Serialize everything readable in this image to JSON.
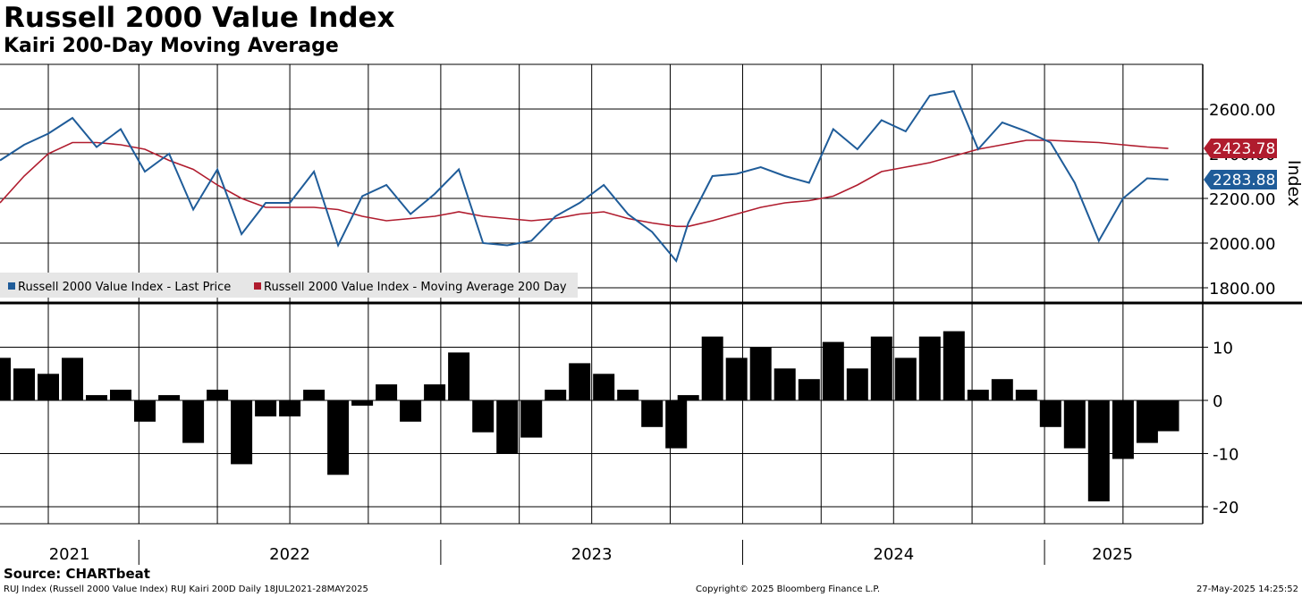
{
  "header": {
    "title": "Russell 2000 Value Index",
    "subtitle": "Kairi 200-Day Moving Average"
  },
  "footer": {
    "source": "Source: CHARTbeat",
    "ticker_info": "RUJ Index (Russell 2000 Value Index) RUJ Kairi 200D  Daily 18JUL2021-28MAY2025",
    "copyright": "Copyright© 2025 Bloomberg Finance L.P.",
    "timestamp": "27-May-2025 14:25:52"
  },
  "colors": {
    "price": "#1f5c99",
    "moving_average": "#b01c2e",
    "kairi": "#000000",
    "grid": "#000000"
  },
  "chart_data": [
    {
      "type": "line",
      "panel": "upper",
      "ylabel": "Index",
      "ylim": [
        1760,
        2800
      ],
      "yticks": [
        1800,
        2000,
        2200,
        2400,
        2600
      ],
      "ytick_labels": [
        "1800.00",
        "2000.00",
        "2200.00",
        "2400.00",
        "2600.00"
      ],
      "xlim": [
        2021.54,
        2025.45
      ],
      "x": [
        2021.54,
        2021.62,
        2021.7,
        2021.78,
        2021.86,
        2021.94,
        2022.02,
        2022.1,
        2022.18,
        2022.26,
        2022.34,
        2022.42,
        2022.5,
        2022.58,
        2022.66,
        2022.74,
        2022.82,
        2022.9,
        2022.98,
        2023.06,
        2023.14,
        2023.22,
        2023.3,
        2023.38,
        2023.46,
        2023.54,
        2023.62,
        2023.7,
        2023.78,
        2023.82,
        2023.9,
        2023.98,
        2024.06,
        2024.14,
        2024.22,
        2024.3,
        2024.38,
        2024.46,
        2024.54,
        2024.62,
        2024.7,
        2024.78,
        2024.86,
        2024.94,
        2025.02,
        2025.1,
        2025.18,
        2025.26,
        2025.34,
        2025.41
      ],
      "series": [
        {
          "name": "Russell 2000 Value Index - Last Price",
          "badge": "2283.88",
          "values": [
            2370,
            2440,
            2490,
            2560,
            2430,
            2510,
            2320,
            2400,
            2150,
            2330,
            2040,
            2180,
            2180,
            2320,
            1990,
            2210,
            2260,
            2130,
            2220,
            2330,
            2000,
            1990,
            2010,
            2120,
            2180,
            2260,
            2130,
            2050,
            1920,
            2090,
            2300,
            2310,
            2340,
            2300,
            2270,
            2510,
            2420,
            2550,
            2500,
            2660,
            2680,
            2420,
            2540,
            2500,
            2450,
            2270,
            2010,
            2200,
            2290,
            2283.88
          ]
        },
        {
          "name": "Russell 2000 Value Index - Moving Average 200 Day",
          "badge": "2423.78",
          "values": [
            2180,
            2300,
            2400,
            2450,
            2450,
            2440,
            2420,
            2370,
            2330,
            2260,
            2200,
            2160,
            2160,
            2160,
            2150,
            2120,
            2100,
            2110,
            2120,
            2140,
            2120,
            2110,
            2100,
            2110,
            2130,
            2140,
            2110,
            2090,
            2075,
            2075,
            2100,
            2130,
            2160,
            2180,
            2190,
            2210,
            2260,
            2320,
            2340,
            2360,
            2390,
            2420,
            2440,
            2460,
            2460,
            2455,
            2450,
            2440,
            2430,
            2423.78
          ]
        }
      ]
    },
    {
      "type": "bar",
      "panel": "lower",
      "ylim": [
        -22,
        18
      ],
      "yticks": [
        -20,
        -10,
        0,
        10
      ],
      "ytick_labels": [
        "-20",
        "-10",
        "0",
        "10"
      ],
      "x": [
        2021.54,
        2021.62,
        2021.7,
        2021.78,
        2021.86,
        2021.94,
        2022.02,
        2022.1,
        2022.18,
        2022.26,
        2022.34,
        2022.42,
        2022.5,
        2022.58,
        2022.66,
        2022.74,
        2022.82,
        2022.9,
        2022.98,
        2023.06,
        2023.14,
        2023.22,
        2023.3,
        2023.38,
        2023.46,
        2023.54,
        2023.62,
        2023.7,
        2023.78,
        2023.82,
        2023.9,
        2023.98,
        2024.06,
        2024.14,
        2024.22,
        2024.3,
        2024.38,
        2024.46,
        2024.54,
        2024.62,
        2024.7,
        2024.78,
        2024.86,
        2024.94,
        2025.02,
        2025.1,
        2025.18,
        2025.26,
        2025.34,
        2025.41
      ],
      "series": [
        {
          "name": "RUJ Kairi 200D",
          "values": [
            8,
            6,
            5,
            8,
            1,
            2,
            -4,
            1,
            -8,
            2,
            -12,
            -3,
            -3,
            2,
            -14,
            -1,
            3,
            -4,
            3,
            9,
            -6,
            -10,
            -7,
            2,
            7,
            5,
            2,
            -5,
            -9,
            1,
            12,
            8,
            10,
            6,
            4,
            11,
            6,
            12,
            8,
            12,
            13,
            2,
            4,
            2,
            -5,
            -9,
            -19,
            -11,
            -8,
            -5.8
          ]
        }
      ],
      "xtick_labels": [
        "2021",
        "2022",
        "2023",
        "2024",
        "2025"
      ]
    }
  ]
}
